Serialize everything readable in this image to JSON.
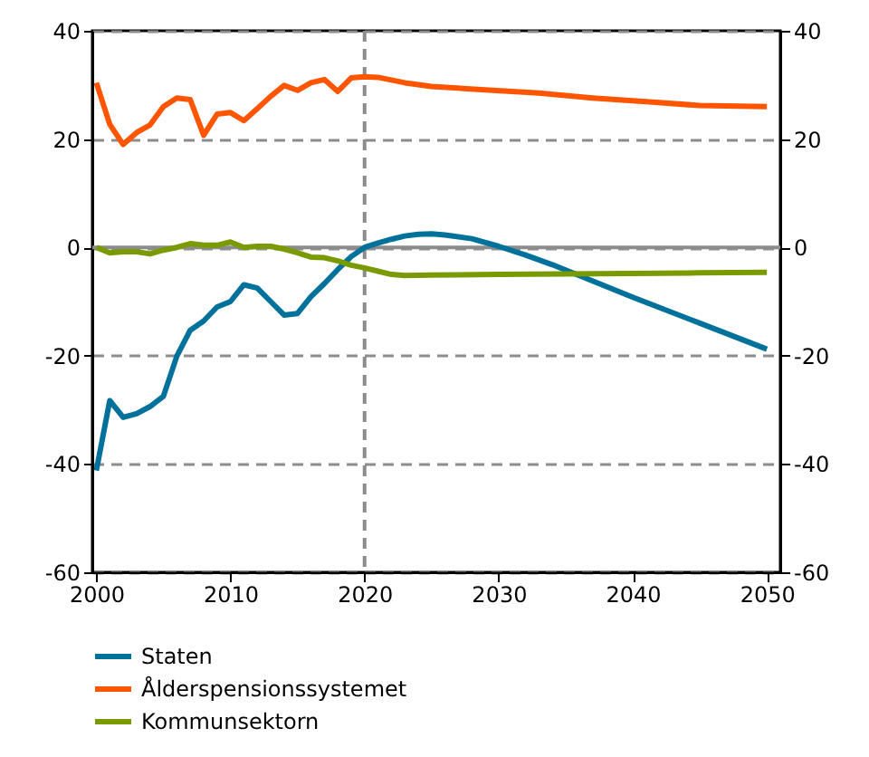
{
  "chart_data": {
    "type": "line",
    "xlim": [
      1999.7,
      2051
    ],
    "xticks": [
      2000,
      2010,
      2020,
      2030,
      2040,
      2050
    ],
    "ylim": [
      -60,
      40
    ],
    "yticks": [
      -60,
      -40,
      -20,
      0,
      20,
      40
    ],
    "y2lim": [
      -60,
      40
    ],
    "y2ticks": [
      -60,
      -40,
      -20,
      0,
      20,
      40
    ],
    "grid": "y",
    "legend": "bottom left",
    "line_style": "solid",
    "ref_lines": [
      {
        "axis": "x",
        "value": 2020,
        "line_style": "dashed",
        "color": "#8c8c8c"
      },
      {
        "axis": "y",
        "value": 0,
        "line_style": "solid",
        "color": "#8c8c8c"
      }
    ],
    "series": [
      {
        "name": "Staten",
        "color": "#00719b",
        "x": [
          2000,
          2001,
          2002,
          2003,
          2004,
          2005,
          2006,
          2007,
          2008,
          2009,
          2010,
          2011,
          2012,
          2013,
          2014,
          2015,
          2016,
          2017,
          2018,
          2019,
          2020,
          2021,
          2022,
          2023,
          2024,
          2025,
          2026,
          2028,
          2030,
          2032,
          2034,
          2036,
          2038,
          2040,
          2045,
          2050
        ],
        "values": [
          -41.2,
          -28.3,
          -31.4,
          -30.7,
          -29.4,
          -27.5,
          -20.1,
          -15.3,
          -13.6,
          -11,
          -10,
          -6.9,
          -7.5,
          -10,
          -12.5,
          -12.2,
          -9.1,
          -6.7,
          -4.1,
          -1.7,
          0,
          0.8,
          1.5,
          2.1,
          2.4,
          2.5,
          2.3,
          1.6,
          0.2,
          -1.4,
          -3.2,
          -5.2,
          -7.2,
          -9.2,
          -14,
          -18.8
        ]
      },
      {
        "name": "Ålderspensionssystemet",
        "color": "#ff5500",
        "x": [
          2000,
          2001,
          2002,
          2003,
          2004,
          2005,
          2006,
          2007,
          2008,
          2009,
          2010,
          2011,
          2012,
          2013,
          2014,
          2015,
          2016,
          2017,
          2018,
          2019,
          2020,
          2021,
          2023,
          2025,
          2029,
          2033,
          2037,
          2041,
          2045,
          2050
        ],
        "values": [
          30.4,
          22.7,
          19,
          21.2,
          22.6,
          26,
          27.6,
          27.3,
          20.7,
          24.6,
          24.9,
          23.4,
          25.6,
          27.9,
          29.9,
          29,
          30.4,
          31,
          28.8,
          31.3,
          31.5,
          31.4,
          30.4,
          29.7,
          29.1,
          28.5,
          27.6,
          26.9,
          26.2,
          26
        ]
      },
      {
        "name": "Kommunsektorn",
        "color": "#7a9a01",
        "x": [
          2000,
          2001,
          2002,
          2003,
          2004,
          2005,
          2006,
          2007,
          2008,
          2009,
          2010,
          2011,
          2012,
          2013,
          2014,
          2015,
          2016,
          2017,
          2018,
          2019,
          2020,
          2021,
          2022,
          2023,
          2025,
          2030,
          2035,
          2040,
          2045,
          2050
        ],
        "values": [
          0,
          -1,
          -0.8,
          -0.8,
          -1.2,
          -0.5,
          0,
          0.7,
          0.4,
          0.4,
          1,
          0,
          0.2,
          0.2,
          -0.3,
          -1,
          -1.8,
          -1.9,
          -2.5,
          -3.3,
          -3.8,
          -4.4,
          -5,
          -5.2,
          -5.1,
          -5,
          -4.9,
          -4.8,
          -4.7,
          -4.6
        ]
      }
    ]
  }
}
